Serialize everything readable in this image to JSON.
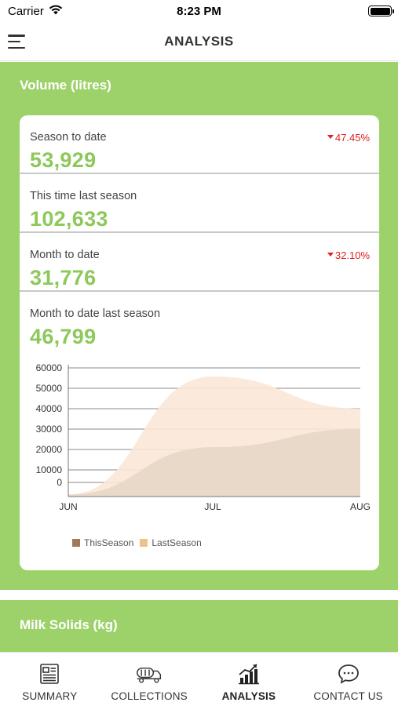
{
  "status_bar": {
    "carrier": "Carrier",
    "time": "8:23 PM"
  },
  "nav": {
    "title": "ANALYSIS"
  },
  "volume": {
    "title": "Volume (litres)",
    "stats": [
      {
        "label": "Season to date",
        "value": "53,929",
        "change": "47.45%"
      },
      {
        "label": "This time last season",
        "value": "102,633",
        "change": ""
      },
      {
        "label": "Month to date",
        "value": "31,776",
        "change": "32.10%"
      },
      {
        "label": "Month to date last season",
        "value": "46,799",
        "change": ""
      }
    ]
  },
  "chart_data": {
    "type": "area",
    "x": [
      "JUN",
      "JUL",
      "AUG"
    ],
    "y_ticks": [
      "60000",
      "50000",
      "40000",
      "30000",
      "20000",
      "10000",
      "0"
    ],
    "ylim": [
      0,
      60000
    ],
    "grid": true,
    "legend_position": "bottom-left",
    "series": [
      {
        "name": "ThisSeason",
        "color": "#a07a5a",
        "fill": "#e8d8c6",
        "values": [
          1000,
          23000,
          31500
        ]
      },
      {
        "name": "LastSeason",
        "color": "#f0c08a",
        "fill": "#fbe8d8",
        "values": [
          1000,
          56000,
          41000
        ]
      }
    ]
  },
  "milk_solids": {
    "title": "Milk Solids (kg)"
  },
  "tabs": [
    {
      "label": "SUMMARY",
      "icon": "summary-icon"
    },
    {
      "label": "COLLECTIONS",
      "icon": "collections-icon"
    },
    {
      "label": "ANALYSIS",
      "icon": "analysis-icon"
    },
    {
      "label": "CONTACT US",
      "icon": "contact-icon"
    }
  ]
}
